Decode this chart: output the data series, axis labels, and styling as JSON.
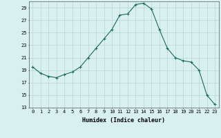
{
  "x": [
    0,
    1,
    2,
    3,
    4,
    5,
    6,
    7,
    8,
    9,
    10,
    11,
    12,
    13,
    14,
    15,
    16,
    17,
    18,
    19,
    20,
    21,
    22,
    23
  ],
  "y": [
    19.5,
    18.5,
    18.0,
    17.8,
    18.3,
    18.7,
    19.5,
    21.0,
    22.5,
    24.0,
    25.5,
    27.8,
    28.0,
    29.5,
    29.7,
    28.8,
    25.5,
    22.5,
    21.0,
    20.5,
    20.3,
    19.0,
    15.0,
    13.5
  ],
  "line_color": "#1a6b5a",
  "marker": "+",
  "marker_size": 3,
  "background_color": "#d8f0f0",
  "grid_color": "#b8d4d4",
  "xlabel": "Humidex (Indice chaleur)",
  "xlim": [
    -0.5,
    23.5
  ],
  "ylim": [
    13,
    30
  ],
  "yticks": [
    13,
    15,
    17,
    19,
    21,
    23,
    25,
    27,
    29
  ],
  "xticks": [
    0,
    1,
    2,
    3,
    4,
    5,
    6,
    7,
    8,
    9,
    10,
    11,
    12,
    13,
    14,
    15,
    16,
    17,
    18,
    19,
    20,
    21,
    22,
    23
  ]
}
